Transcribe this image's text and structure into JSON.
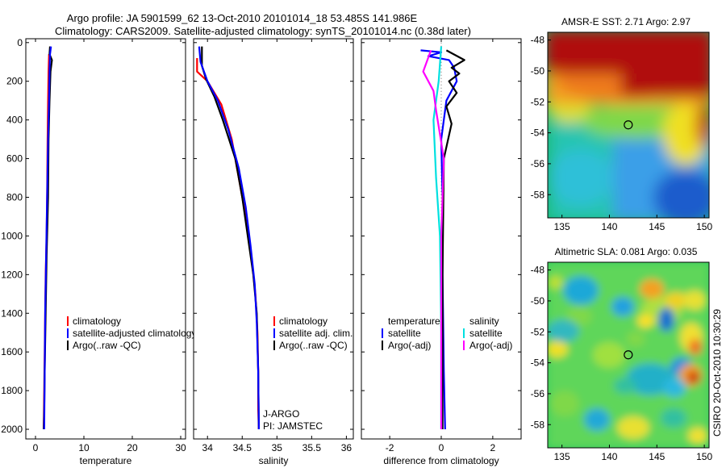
{
  "title_line1": "Argo profile: JA 5901599_62 13-Oct-2010 20101014_18 53.485S 141.986E",
  "title_line2": "Climatology: CARS2009. Satellite-adjusted climatology: synTS_20101014.nc (0.38d later)",
  "stamp": "CSIRO 20-Oct-2010 10:30:29",
  "chart_data": [
    {
      "id": "temperature",
      "type": "line",
      "xlabel": "temperature",
      "ylabel": "",
      "xlim": [
        -2,
        31
      ],
      "ylim": [
        2050,
        -20
      ],
      "xticks": [
        0,
        10,
        20,
        30
      ],
      "yticks": [
        0,
        200,
        400,
        600,
        800,
        1000,
        1200,
        1400,
        1600,
        1800,
        2000
      ],
      "legend": [
        "climatology",
        "satellite-adjusted climatology",
        "Argo(..raw -QC)"
      ],
      "legend_position": "bottom-right",
      "series": [
        {
          "name": "climatology",
          "color": "#ff0000",
          "x": [
            2.8,
            2.7,
            2.6,
            2.5,
            2.4,
            2.3,
            2.1,
            2.0,
            1.9,
            1.8,
            1.7
          ],
          "y": [
            60,
            150,
            300,
            500,
            800,
            1000,
            1200,
            1400,
            1600,
            1800,
            2000
          ]
        },
        {
          "name": "Argo(..raw -QC)",
          "color": "#000000",
          "x": [
            3.0,
            2.9,
            3.4,
            3.1,
            2.9,
            2.7,
            2.6,
            2.3,
            2.1,
            1.9,
            1.8,
            1.7
          ],
          "y": [
            20,
            60,
            90,
            150,
            300,
            500,
            800,
            1100,
            1400,
            1700,
            1900,
            2000
          ]
        },
        {
          "name": "satellite-adjusted climatology",
          "color": "#0000ff",
          "x": [
            3.2,
            3.0,
            2.9,
            2.8,
            2.6,
            2.4,
            2.2,
            2.0,
            1.9,
            1.8
          ],
          "y": [
            20,
            60,
            150,
            300,
            500,
            800,
            1100,
            1400,
            1700,
            2000
          ]
        }
      ]
    },
    {
      "id": "salinity",
      "type": "line",
      "xlabel": "salinity",
      "xlim": [
        33.8,
        36.1
      ],
      "ylim": [
        2050,
        -20
      ],
      "xticks": [
        34,
        34.5,
        35,
        35.5,
        36
      ],
      "legend": [
        "climatology",
        "satellite adj. clim.",
        "Argo(..raw -QC)"
      ],
      "legend_position": "bottom-right",
      "annotations": [
        "J-ARGO",
        "PI: JAMSTEC"
      ],
      "series": [
        {
          "name": "climatology",
          "color": "#ff0000",
          "x": [
            33.85,
            33.85,
            34.0,
            34.2,
            34.35,
            34.45,
            34.55,
            34.63,
            34.69,
            34.72,
            34.73,
            34.73,
            34.74
          ],
          "y": [
            80,
            150,
            200,
            320,
            500,
            700,
            900,
            1100,
            1300,
            1500,
            1700,
            1900,
            2000
          ]
        },
        {
          "name": "Argo(..raw -QC)",
          "color": "#000000",
          "x": [
            33.92,
            33.92,
            33.98,
            34.1,
            34.22,
            34.4,
            34.5,
            34.58,
            34.66,
            34.71,
            34.73,
            34.74
          ],
          "y": [
            20,
            120,
            190,
            280,
            400,
            600,
            800,
            1000,
            1200,
            1400,
            1700,
            2000
          ]
        },
        {
          "name": "satellite adj. clim.",
          "color": "#0000ff",
          "x": [
            33.88,
            33.9,
            34.0,
            34.15,
            34.3,
            34.45,
            34.55,
            34.62,
            34.68,
            34.71,
            34.73,
            34.74
          ],
          "y": [
            20,
            100,
            200,
            300,
            450,
            650,
            850,
            1050,
            1250,
            1450,
            1700,
            2000
          ]
        }
      ]
    },
    {
      "id": "difference",
      "type": "line",
      "xlabel": "difference from climatology",
      "xlim": [
        -3.1,
        3.1
      ],
      "ylim": [
        2050,
        -20
      ],
      "xticks": [
        -2,
        0,
        2
      ],
      "legend_titles": [
        "temperature",
        "salinity"
      ],
      "legend": [
        "satellite",
        "Argo(-adj)",
        "satellite",
        "Argo(-adj)"
      ],
      "legend_position": "bottom",
      "series": [
        {
          "name": "temperature satellite",
          "color": "#0000ff",
          "x": [
            -0.8,
            0.0,
            -0.5,
            0.3,
            0.5,
            0.6,
            0.2,
            0.0,
            0.05,
            0.05,
            0.1,
            0.15
          ],
          "y": [
            40,
            50,
            70,
            90,
            130,
            200,
            300,
            500,
            800,
            1200,
            1700,
            2000
          ]
        },
        {
          "name": "temperature Argo(-adj)",
          "color": "#000000",
          "x": [
            0.2,
            0.9,
            0.4,
            0.7,
            0.3,
            0.6,
            0.2,
            0.4,
            0.1,
            0.05,
            0.05
          ],
          "y": [
            40,
            90,
            130,
            160,
            200,
            260,
            330,
            420,
            600,
            1200,
            2000
          ]
        },
        {
          "name": "salinity satellite",
          "color": "#00e0e0",
          "x": [
            0.0,
            -0.1,
            -0.3,
            -0.2,
            -0.05,
            0.0,
            0.0
          ],
          "y": [
            20,
            200,
            400,
            700,
            1000,
            1500,
            2000
          ]
        },
        {
          "name": "salinity Argo(-adj)",
          "color": "#ff00ff",
          "x": [
            -0.4,
            -0.7,
            -0.3,
            -0.2,
            0.1,
            0.0,
            0.0
          ],
          "y": [
            40,
            150,
            250,
            350,
            600,
            1000,
            2000
          ]
        }
      ]
    },
    {
      "id": "sst-map",
      "type": "heatmap",
      "title": "AMSR-E SST: 2.71 Argo: 2.97",
      "xlim": [
        133.5,
        150.5
      ],
      "ylim": [
        -59.5,
        -47.5
      ],
      "xticks": [
        135,
        140,
        145,
        150
      ],
      "yticks": [
        -48,
        -50,
        -52,
        -54,
        -56,
        -58
      ],
      "marker": {
        "lon": 141.986,
        "lat": -53.485
      }
    },
    {
      "id": "sla-map",
      "type": "heatmap",
      "title": "Altimetric SLA: 0.081 Argo: 0.035",
      "xlim": [
        133.5,
        150.5
      ],
      "ylim": [
        -59.5,
        -47.5
      ],
      "xticks": [
        135,
        140,
        145,
        150
      ],
      "yticks": [
        -48,
        -50,
        -52,
        -54,
        -56,
        -58
      ],
      "marker": {
        "lon": 141.986,
        "lat": -53.485
      }
    }
  ]
}
